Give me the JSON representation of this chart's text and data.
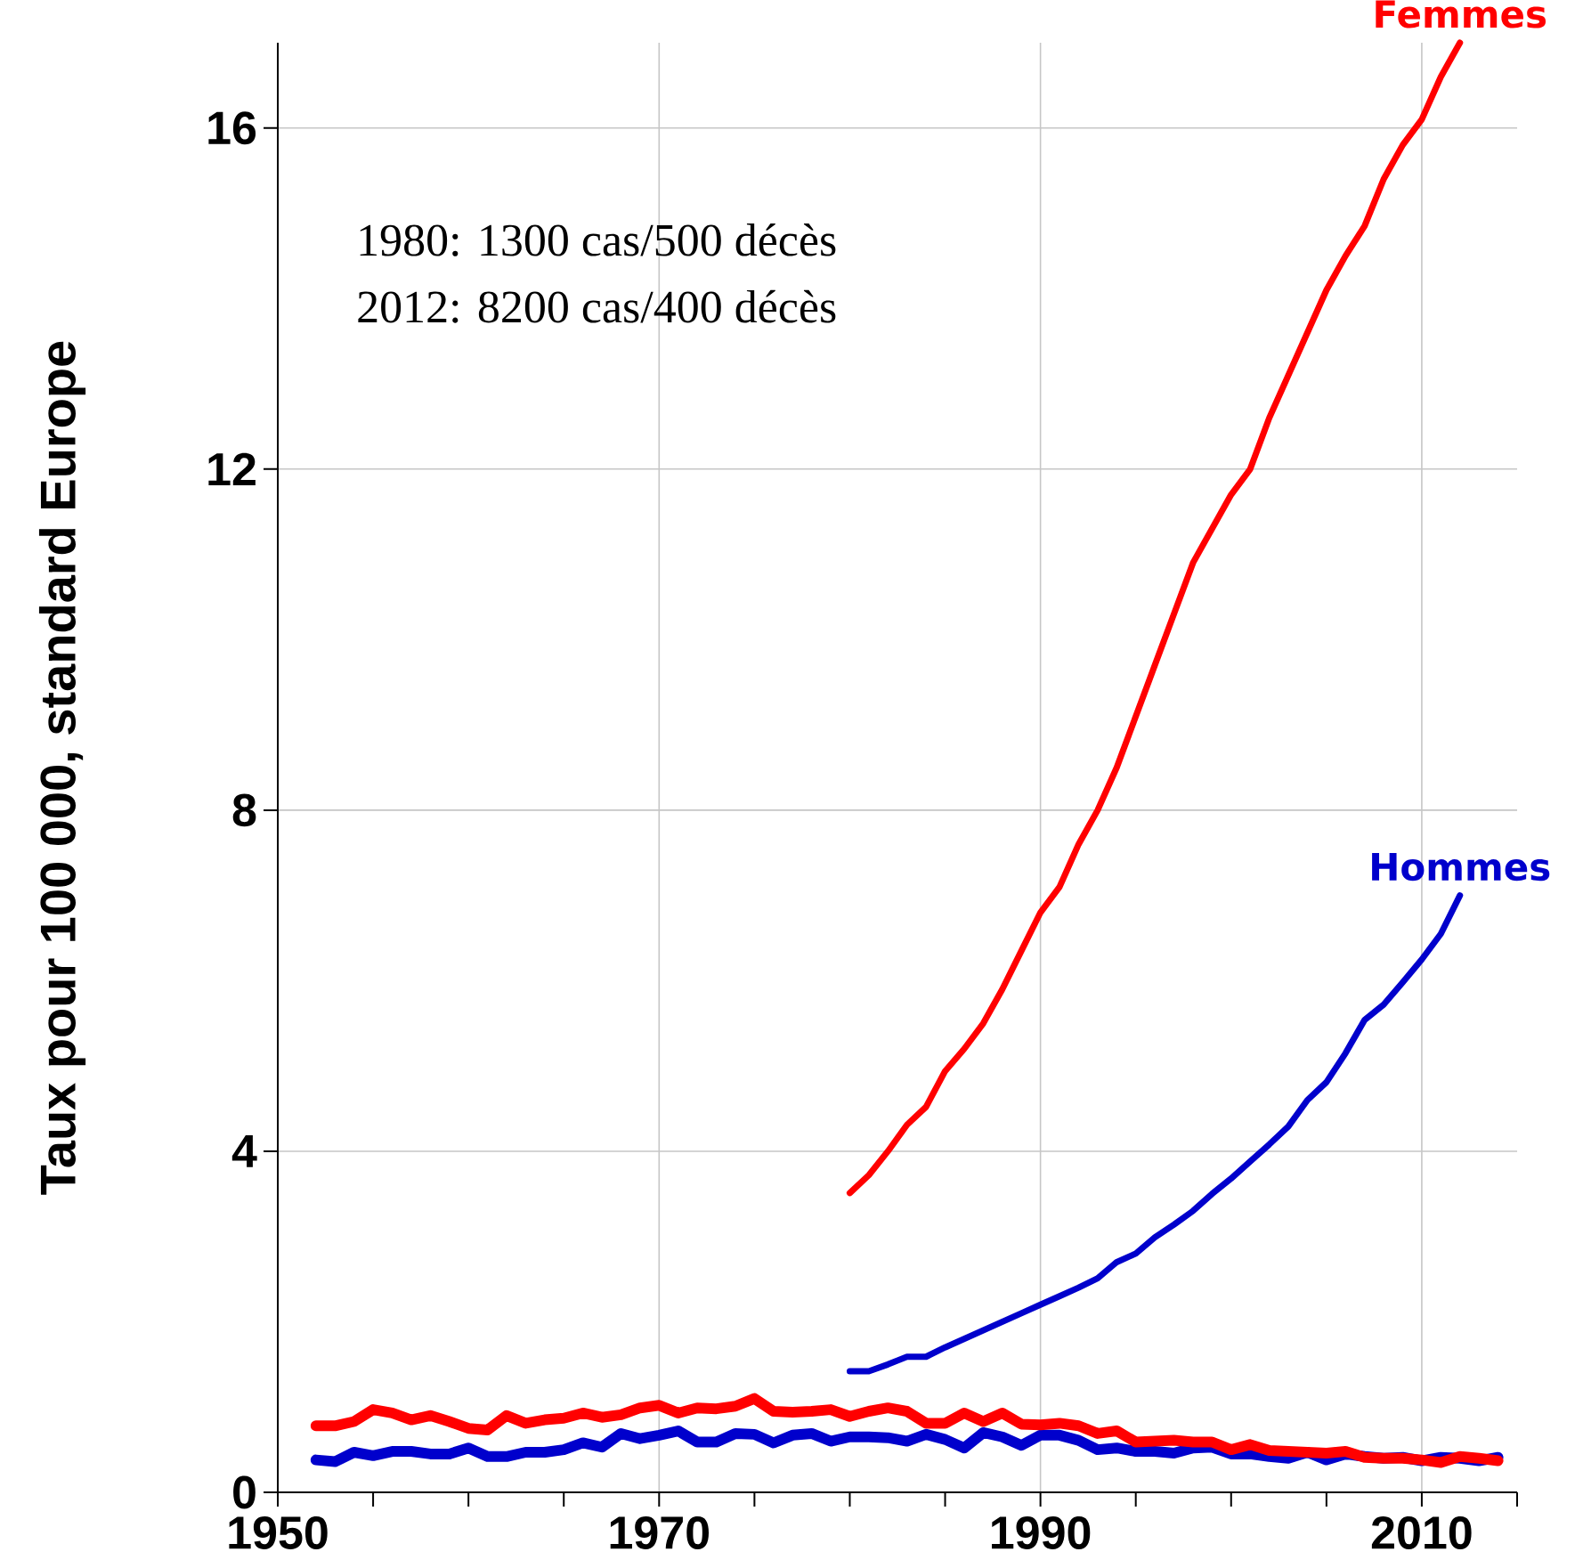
{
  "chart_data": {
    "type": "line",
    "ylabel": "Taux pour 100 000, standard Europe",
    "annotations": [
      "1980: 1300 cas/500 décès",
      "2012: 8200 cas/400 décès"
    ],
    "xlim": [
      1950,
      2015
    ],
    "ylim": [
      0,
      17
    ],
    "xticks": [
      1950,
      {
        "value": 1955,
        "label": null
      },
      {
        "value": 1960,
        "label": null
      },
      {
        "value": 1965,
        "label": null
      },
      1970,
      {
        "value": 1975,
        "label": null
      },
      {
        "value": 1980,
        "label": null
      },
      {
        "value": 1985,
        "label": null
      },
      1990,
      {
        "value": 1995,
        "label": null
      },
      {
        "value": 2000,
        "label": null
      },
      {
        "value": 2005,
        "label": null
      },
      2010,
      {
        "value": 2015,
        "label": null
      }
    ],
    "yticks": [
      0,
      4,
      8,
      12,
      16
    ],
    "grid": true,
    "marker": "none",
    "line_style": "solid",
    "series": [
      {
        "name": "Femmes",
        "color": "#ff0000",
        "x": [
          1980,
          1981,
          1982,
          1983,
          1984,
          1985,
          1986,
          1987,
          1988,
          1989,
          1990,
          1991,
          1992,
          1993,
          1994,
          1995,
          1996,
          1997,
          1998,
          1999,
          2000,
          2001,
          2002,
          2003,
          2004,
          2005,
          2006,
          2007,
          2008,
          2009,
          2010,
          2011,
          2012
        ],
        "values": [
          3.51,
          3.72,
          4.0,
          4.31,
          4.52,
          4.94,
          5.2,
          5.5,
          5.9,
          6.35,
          6.8,
          7.1,
          7.6,
          8.0,
          8.5,
          9.1,
          9.7,
          10.3,
          10.9,
          11.3,
          11.7,
          12.0,
          12.6,
          13.1,
          13.6,
          14.1,
          14.5,
          14.85,
          15.4,
          15.8,
          16.1,
          16.6,
          17.0
        ]
      },
      {
        "name": "Hommes",
        "color": "#0000cc",
        "x": [
          1980,
          1981,
          1982,
          1983,
          1984,
          1985,
          1986,
          1987,
          1988,
          1989,
          1990,
          1991,
          1992,
          1993,
          1994,
          1995,
          1996,
          1997,
          1998,
          1999,
          2000,
          2001,
          2002,
          2003,
          2004,
          2005,
          2006,
          2007,
          2008,
          2009,
          2010,
          2011,
          2012
        ],
        "values": [
          1.42,
          1.42,
          1.5,
          1.59,
          1.59,
          1.7,
          1.8,
          1.9,
          2.0,
          2.1,
          2.2,
          2.3,
          2.4,
          2.51,
          2.7,
          2.8,
          2.99,
          3.14,
          3.3,
          3.5,
          3.68,
          3.88,
          4.08,
          4.29,
          4.6,
          4.81,
          5.15,
          5.54,
          5.72,
          5.98,
          6.25,
          6.55,
          7.0
        ]
      },
      {
        "color": "#0000cc",
        "x": [
          1952,
          1953,
          1954,
          1955,
          1956,
          1957,
          1958,
          1959,
          1960,
          1961,
          1962,
          1963,
          1964,
          1965,
          1966,
          1967,
          1968,
          1969,
          1970,
          1971,
          1972,
          1973,
          1974,
          1975,
          1976,
          1977,
          1978,
          1979,
          1980,
          1981,
          1982,
          1983,
          1984,
          1985,
          1986,
          1987,
          1988,
          1989,
          1990,
          1991,
          1992,
          1993,
          1994,
          1995,
          1996,
          1997,
          1998,
          1999,
          2000,
          2001,
          2002,
          2003,
          2004,
          2005,
          2006,
          2007,
          2008,
          2009,
          2010,
          2011,
          2012,
          2013,
          2014
        ],
        "values": [
          0.38,
          0.36,
          0.47,
          0.43,
          0.48,
          0.48,
          0.45,
          0.45,
          0.52,
          0.42,
          0.42,
          0.47,
          0.47,
          0.5,
          0.58,
          0.53,
          0.69,
          0.63,
          0.67,
          0.72,
          0.59,
          0.59,
          0.69,
          0.68,
          0.58,
          0.67,
          0.69,
          0.6,
          0.65,
          0.65,
          0.64,
          0.6,
          0.68,
          0.62,
          0.52,
          0.7,
          0.65,
          0.55,
          0.67,
          0.67,
          0.61,
          0.5,
          0.52,
          0.48,
          0.48,
          0.46,
          0.52,
          0.53,
          0.45,
          0.45,
          0.42,
          0.4,
          0.47,
          0.38,
          0.45,
          0.42,
          0.4,
          0.41,
          0.37,
          0.41,
          0.4,
          0.37,
          0.41
        ]
      },
      {
        "color": "#ff0000",
        "x": [
          1952,
          1953,
          1954,
          1955,
          1956,
          1957,
          1958,
          1959,
          1960,
          1961,
          1962,
          1963,
          1964,
          1965,
          1966,
          1967,
          1968,
          1969,
          1970,
          1971,
          1972,
          1973,
          1974,
          1975,
          1976,
          1977,
          1978,
          1979,
          1980,
          1981,
          1982,
          1983,
          1984,
          1985,
          1986,
          1987,
          1988,
          1989,
          1990,
          1991,
          1992,
          1993,
          1994,
          1995,
          1996,
          1997,
          1998,
          1999,
          2000,
          2001,
          2002,
          2003,
          2004,
          2005,
          2006,
          2007,
          2008,
          2009,
          2010,
          2011,
          2012,
          2013,
          2014
        ],
        "values": [
          0.78,
          0.78,
          0.83,
          0.97,
          0.93,
          0.85,
          0.9,
          0.83,
          0.75,
          0.73,
          0.9,
          0.81,
          0.85,
          0.87,
          0.93,
          0.88,
          0.91,
          0.99,
          1.02,
          0.93,
          0.99,
          0.98,
          1.01,
          1.1,
          0.95,
          0.94,
          0.95,
          0.97,
          0.89,
          0.95,
          0.99,
          0.95,
          0.81,
          0.81,
          0.93,
          0.83,
          0.93,
          0.8,
          0.79,
          0.81,
          0.78,
          0.69,
          0.72,
          0.59,
          0.6,
          0.61,
          0.59,
          0.59,
          0.5,
          0.56,
          0.49,
          0.48,
          0.47,
          0.46,
          0.48,
          0.41,
          0.4,
          0.4,
          0.38,
          0.35,
          0.42,
          0.4,
          0.37
        ]
      }
    ]
  }
}
